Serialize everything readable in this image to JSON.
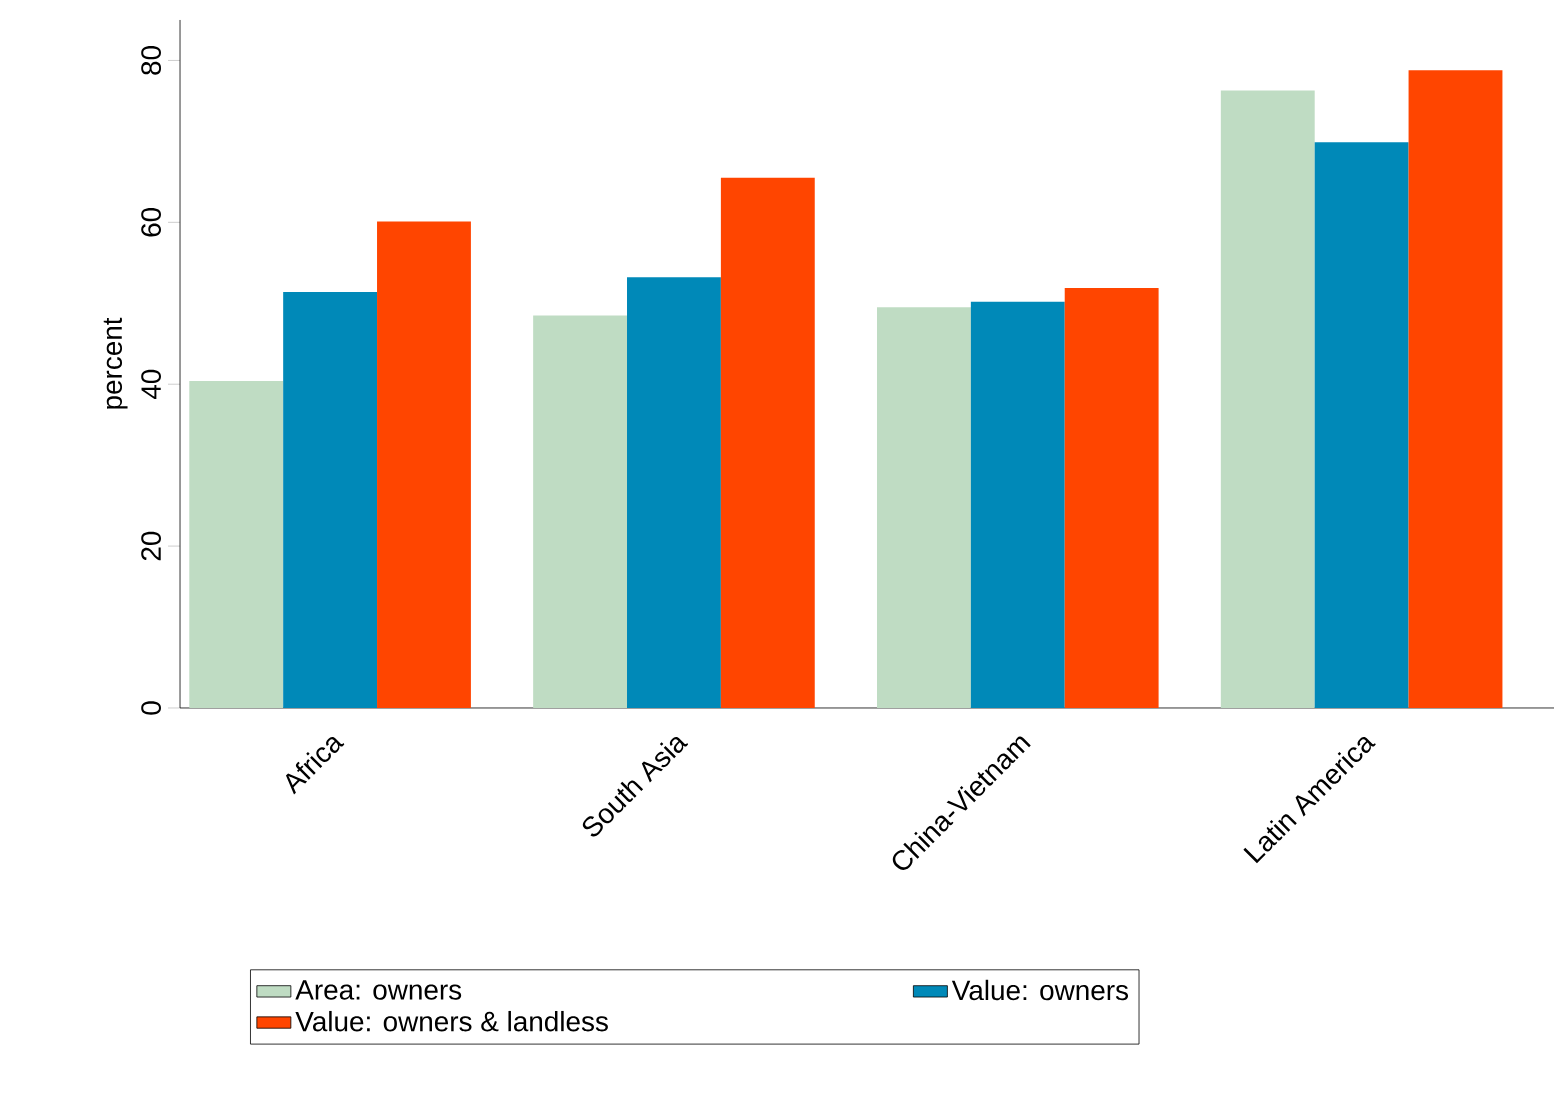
{
  "chart_data": {
    "type": "bar",
    "ylabel": "percent",
    "categories": [
      "Africa",
      "South Asia",
      "China-Vietnam",
      "Latin America"
    ],
    "series": [
      {
        "name": "Area: owners",
        "color": "#bfdcc3",
        "values": [
          40.4,
          48.5,
          49.5,
          76.3
        ]
      },
      {
        "name": "Value: owners",
        "color": "#0089b8",
        "values": [
          51.4,
          53.2,
          50.2,
          69.9
        ]
      },
      {
        "name": "Value: owners & landless",
        "color": "#ff4500",
        "values": [
          60.1,
          65.5,
          51.9,
          78.8
        ]
      }
    ],
    "ylim": [
      0,
      85
    ],
    "yticks": [
      0,
      20,
      40,
      60,
      80
    ],
    "grid": false,
    "legend": "bottom"
  }
}
